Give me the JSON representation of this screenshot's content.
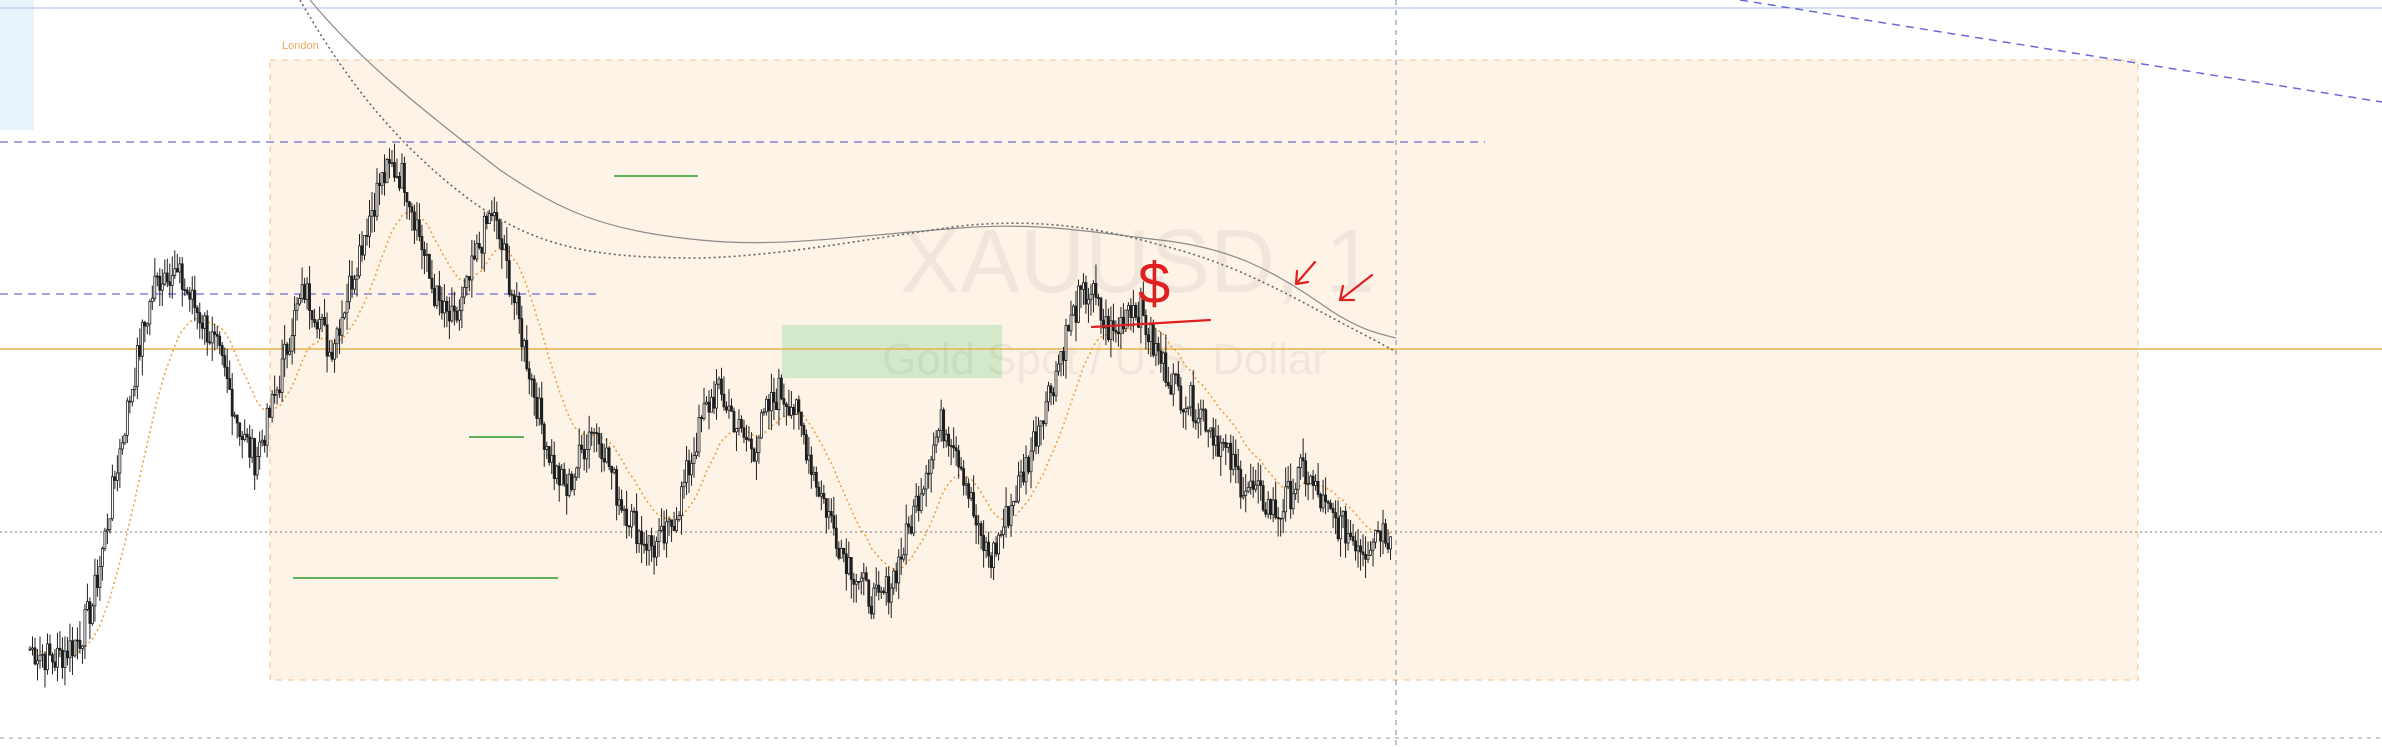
{
  "chart_data": {
    "type": "candlestick",
    "watermark": {
      "symbol": "XAUUSD, 1",
      "description": "Gold Spot / U.S. Dollar"
    },
    "session_label": "London",
    "annotations": {
      "drawn_symbol": "$",
      "drawn_arrows": 2
    },
    "colors": {
      "candle": "#1f1f1f",
      "session_fill": "#fdf3e7",
      "session_border": "#f3c28d",
      "level_line": "#e8b34a",
      "dashed_levels": "#6b6bd6",
      "support_lines": "#2e9a2e",
      "green_zone": "#cfe8c6",
      "ema_dotted_orange": "#f0a040",
      "ma_gray": "#8a8a8a",
      "ink": "#e02020"
    },
    "price_path": [
      0.02,
      0.01,
      0.0,
      0.02,
      0.04,
      0.1,
      0.22,
      0.35,
      0.47,
      0.58,
      0.67,
      0.7,
      0.68,
      0.64,
      0.6,
      0.55,
      0.48,
      0.4,
      0.36,
      0.42,
      0.5,
      0.6,
      0.66,
      0.62,
      0.55,
      0.62,
      0.7,
      0.78,
      0.85,
      0.88,
      0.86,
      0.78,
      0.68,
      0.62,
      0.6,
      0.66,
      0.74,
      0.8,
      0.72,
      0.62,
      0.52,
      0.42,
      0.34,
      0.3,
      0.36,
      0.42,
      0.38,
      0.3,
      0.26,
      0.22,
      0.2,
      0.22,
      0.28,
      0.36,
      0.44,
      0.48,
      0.45,
      0.4,
      0.38,
      0.44,
      0.48,
      0.46,
      0.4,
      0.32,
      0.26,
      0.2,
      0.16,
      0.12,
      0.1,
      0.14,
      0.2,
      0.28,
      0.36,
      0.42,
      0.4,
      0.32,
      0.22,
      0.18,
      0.24,
      0.3,
      0.36,
      0.44,
      0.5,
      0.58,
      0.64,
      0.66,
      0.6,
      0.58,
      0.64,
      0.62,
      0.56,
      0.52,
      0.48,
      0.46,
      0.44,
      0.4,
      0.36,
      0.32,
      0.3,
      0.28,
      0.26,
      0.3,
      0.34,
      0.3,
      0.26,
      0.24,
      0.22,
      0.2,
      0.24,
      0.22
    ]
  }
}
